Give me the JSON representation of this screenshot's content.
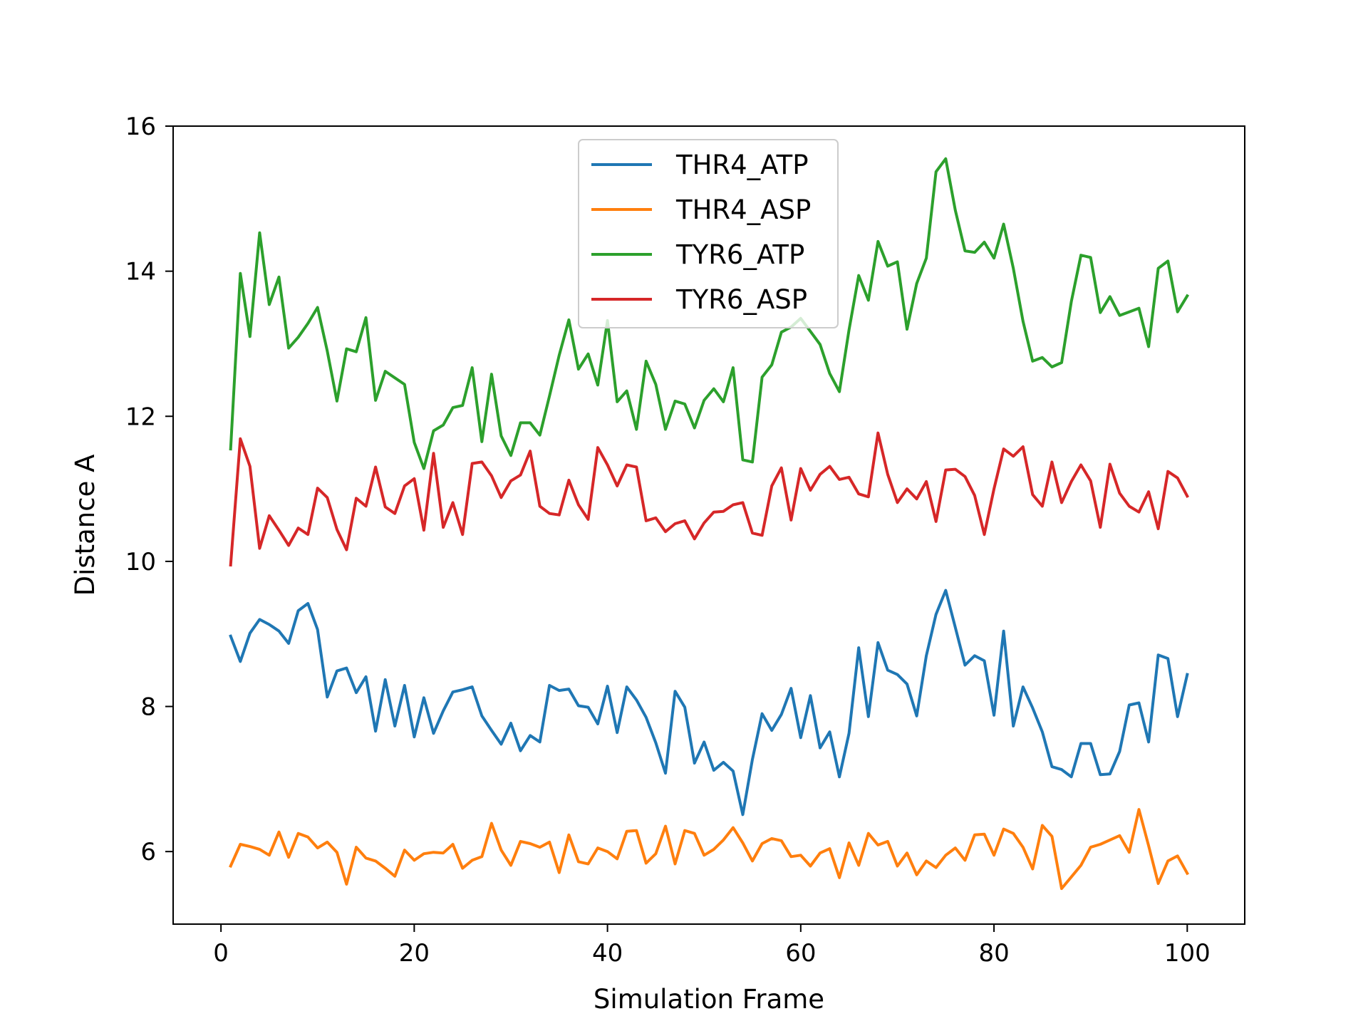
{
  "chart_data": {
    "type": "line",
    "title": "",
    "xlabel": "Simulation Frame",
    "ylabel": "Distance A",
    "xlim": [
      -4.95,
      105.95
    ],
    "ylim": [
      5.0,
      16.0
    ],
    "xticks": [
      0,
      20,
      40,
      60,
      80,
      100
    ],
    "yticks": [
      6,
      8,
      10,
      12,
      14,
      16
    ],
    "grid": false,
    "legend_position": "upper center",
    "x": [
      1,
      2,
      3,
      4,
      5,
      6,
      7,
      8,
      9,
      10,
      11,
      12,
      13,
      14,
      15,
      16,
      17,
      18,
      19,
      20,
      21,
      22,
      23,
      24,
      25,
      26,
      27,
      28,
      29,
      30,
      31,
      32,
      33,
      34,
      35,
      36,
      37,
      38,
      39,
      40,
      41,
      42,
      43,
      44,
      45,
      46,
      47,
      48,
      49,
      50,
      51,
      52,
      53,
      54,
      55,
      56,
      57,
      58,
      59,
      60,
      61,
      62,
      63,
      64,
      65,
      66,
      67,
      68,
      69,
      70,
      71,
      72,
      73,
      74,
      75,
      76,
      77,
      78,
      79,
      80,
      81,
      82,
      83,
      84,
      85,
      86,
      87,
      88,
      89,
      90,
      91,
      92,
      93,
      94,
      95,
      96,
      97,
      98,
      99,
      100
    ],
    "series": [
      {
        "name": "THR4_ATP",
        "color": "#1f77b4",
        "values": [
          8.97,
          8.62,
          9.01,
          9.2,
          9.13,
          9.04,
          8.87,
          9.32,
          9.42,
          9.06,
          8.13,
          8.49,
          8.53,
          8.19,
          8.41,
          7.66,
          8.37,
          7.73,
          8.29,
          7.58,
          8.12,
          7.63,
          7.94,
          8.2,
          8.23,
          8.27,
          7.87,
          7.67,
          7.48,
          7.77,
          7.39,
          7.6,
          7.51,
          8.29,
          8.22,
          8.24,
          8.01,
          7.99,
          7.76,
          8.28,
          7.64,
          8.27,
          8.09,
          7.85,
          7.5,
          7.08,
          8.21,
          7.99,
          7.22,
          7.51,
          7.12,
          7.23,
          7.11,
          6.51,
          7.27,
          7.9,
          7.67,
          7.89,
          8.25,
          7.57,
          8.15,
          7.43,
          7.65,
          7.03,
          7.63,
          8.81,
          7.86,
          8.88,
          8.5,
          8.44,
          8.31,
          7.87,
          8.7,
          9.27,
          9.6,
          9.09,
          8.57,
          8.7,
          8.63,
          7.88,
          9.04,
          7.73,
          8.27,
          7.98,
          7.65,
          7.17,
          7.13,
          7.03,
          7.49,
          7.49,
          7.06,
          7.07,
          7.38,
          8.02,
          8.05,
          7.51,
          8.71,
          8.66,
          7.86,
          8.44
        ]
      },
      {
        "name": "THR4_ASP",
        "color": "#ff7f0e",
        "values": [
          5.8,
          6.1,
          6.07,
          6.03,
          5.95,
          6.27,
          5.92,
          6.25,
          6.2,
          6.05,
          6.13,
          5.99,
          5.55,
          6.06,
          5.91,
          5.87,
          5.77,
          5.66,
          6.02,
          5.88,
          5.97,
          5.99,
          5.98,
          6.1,
          5.77,
          5.88,
          5.93,
          6.39,
          6.02,
          5.81,
          6.14,
          6.11,
          6.06,
          6.13,
          5.71,
          6.23,
          5.86,
          5.83,
          6.05,
          6.0,
          5.9,
          6.28,
          6.29,
          5.84,
          5.97,
          6.35,
          5.83,
          6.29,
          6.25,
          5.95,
          6.03,
          6.16,
          6.33,
          6.12,
          5.87,
          6.11,
          6.18,
          6.15,
          5.93,
          5.95,
          5.8,
          5.98,
          6.04,
          5.64,
          6.12,
          5.81,
          6.25,
          6.09,
          6.14,
          5.8,
          5.98,
          5.68,
          5.87,
          5.78,
          5.95,
          6.05,
          5.88,
          6.23,
          6.24,
          5.95,
          6.31,
          6.25,
          6.06,
          5.76,
          6.36,
          6.21,
          5.49,
          5.65,
          5.81,
          6.06,
          6.1,
          6.16,
          6.22,
          5.99,
          6.58,
          6.08,
          5.56,
          5.87,
          5.94,
          5.7
        ]
      },
      {
        "name": "TYR6_ATP",
        "color": "#2ca02c",
        "values": [
          11.55,
          13.97,
          13.1,
          14.53,
          13.54,
          13.92,
          12.94,
          13.09,
          13.28,
          13.5,
          12.9,
          12.21,
          12.93,
          12.89,
          13.36,
          12.22,
          12.62,
          12.53,
          12.44,
          11.64,
          11.28,
          11.8,
          11.88,
          12.12,
          12.15,
          12.67,
          11.65,
          12.58,
          11.73,
          11.46,
          11.91,
          11.91,
          11.74,
          12.28,
          12.84,
          13.33,
          12.65,
          12.86,
          12.43,
          13.32,
          12.2,
          12.35,
          11.82,
          12.76,
          12.44,
          11.82,
          12.21,
          12.17,
          11.84,
          12.22,
          12.38,
          12.2,
          12.67,
          11.4,
          11.37,
          12.54,
          12.71,
          13.16,
          13.23,
          13.35,
          13.17,
          12.99,
          12.59,
          12.34,
          13.19,
          13.94,
          13.6,
          14.41,
          14.07,
          14.13,
          13.2,
          13.83,
          14.18,
          15.37,
          15.55,
          14.84,
          14.28,
          14.26,
          14.4,
          14.18,
          14.65,
          14.04,
          13.31,
          12.76,
          12.81,
          12.68,
          12.74,
          13.58,
          14.22,
          14.19,
          13.43,
          13.65,
          13.39,
          13.44,
          13.49,
          12.96,
          14.04,
          14.14,
          13.44,
          13.66
        ]
      },
      {
        "name": "TYR6_ASP",
        "color": "#d62728",
        "values": [
          9.95,
          11.69,
          11.31,
          10.18,
          10.63,
          10.43,
          10.22,
          10.46,
          10.37,
          11.01,
          10.88,
          10.44,
          10.16,
          10.87,
          10.76,
          11.3,
          10.75,
          10.66,
          11.04,
          11.14,
          10.43,
          11.49,
          10.47,
          10.81,
          10.37,
          11.35,
          11.37,
          11.18,
          10.88,
          11.11,
          11.19,
          11.52,
          10.76,
          10.66,
          10.64,
          11.12,
          10.78,
          10.58,
          11.57,
          11.33,
          11.04,
          11.33,
          11.3,
          10.56,
          10.6,
          10.41,
          10.52,
          10.56,
          10.31,
          10.53,
          10.68,
          10.69,
          10.78,
          10.81,
          10.39,
          10.36,
          11.04,
          11.29,
          10.57,
          11.28,
          10.98,
          11.2,
          11.31,
          11.13,
          11.16,
          10.93,
          10.89,
          11.77,
          11.2,
          10.81,
          11.0,
          10.86,
          11.1,
          10.55,
          11.26,
          11.27,
          11.17,
          10.91,
          10.37,
          11.0,
          11.55,
          11.45,
          11.58,
          10.92,
          10.76,
          11.37,
          10.81,
          11.1,
          11.33,
          11.11,
          10.47,
          11.34,
          10.94,
          10.76,
          10.68,
          10.96,
          10.45,
          11.24,
          11.15,
          10.9
        ]
      }
    ]
  }
}
